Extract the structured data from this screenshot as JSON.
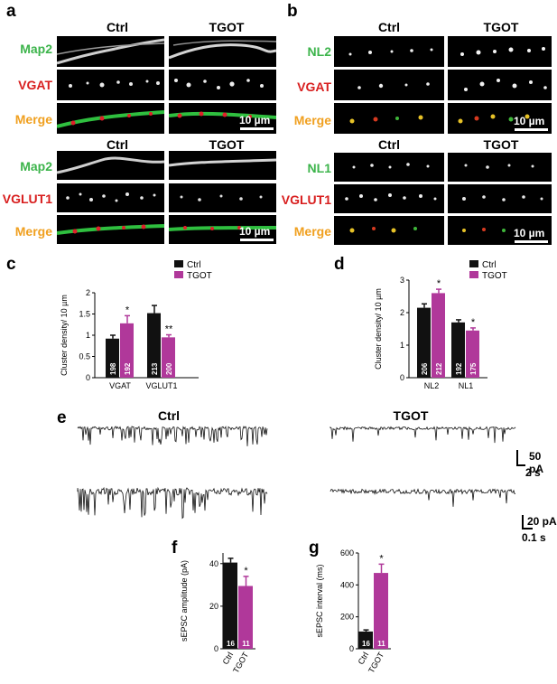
{
  "panels": {
    "a": {
      "letter": "a",
      "top": {
        "conditions": [
          "Ctrl",
          "TGOT"
        ],
        "rows": [
          "Map2",
          "VGAT",
          "Merge"
        ],
        "row_colors": [
          "#3cb44b",
          "#d81e1e",
          "#f0a020"
        ],
        "scale": "10 µm"
      },
      "bottom": {
        "conditions": [
          "Ctrl",
          "TGOT"
        ],
        "rows": [
          "Map2",
          "VGLUT1",
          "Merge"
        ],
        "row_colors": [
          "#3cb44b",
          "#d81e1e",
          "#f0a020"
        ],
        "scale": "10 µm"
      }
    },
    "b": {
      "letter": "b",
      "top": {
        "conditions": [
          "Ctrl",
          "TGOT"
        ],
        "rows": [
          "NL2",
          "VGAT",
          "Merge"
        ],
        "row_colors": [
          "#3cb44b",
          "#d81e1e",
          "#f0a020"
        ],
        "scale": "10 µm"
      },
      "bottom": {
        "conditions": [
          "Ctrl",
          "TGOT"
        ],
        "rows": [
          "NL1",
          "VGLUT1",
          "Merge"
        ],
        "row_colors": [
          "#3cb44b",
          "#d81e1e",
          "#f0a020"
        ],
        "scale": "10 µm"
      }
    },
    "c": {
      "letter": "c"
    },
    "d": {
      "letter": "d"
    },
    "e": {
      "letter": "e",
      "conditions": [
        "Ctrl",
        "TGOT"
      ],
      "scale1_y": "50 pA",
      "scale1_x": "2 s",
      "scale2_y": "20 pA",
      "scale2_x": "0.1 s"
    },
    "f": {
      "letter": "f"
    },
    "g": {
      "letter": "g"
    }
  },
  "colors": {
    "ctrl": "#111111",
    "tgot": "#b0389a"
  },
  "chart_data": [
    {
      "id": "c",
      "type": "bar",
      "ylabel": "Cluster density/ 10 µm",
      "categories": [
        "VGAT",
        "VGLUT1"
      ],
      "ylim": [
        0,
        2
      ],
      "yticks": [
        "0",
        "0.5",
        "1",
        "1.5",
        "2"
      ],
      "legend": [
        "Ctrl",
        "TGOT"
      ],
      "series": [
        {
          "name": "Ctrl",
          "values": [
            0.92,
            1.52
          ],
          "errors": [
            0.08,
            0.18
          ],
          "n": [
            "198",
            "213"
          ],
          "stars": [
            "",
            ""
          ]
        },
        {
          "name": "TGOT",
          "values": [
            1.28,
            0.95
          ],
          "errors": [
            0.18,
            0.06
          ],
          "n": [
            "192",
            "200"
          ],
          "stars": [
            "*",
            "**"
          ]
        }
      ]
    },
    {
      "id": "d",
      "type": "bar",
      "ylabel": "Cluster density/ 10 µm",
      "categories": [
        "NL2",
        "NL1"
      ],
      "ylim": [
        0,
        3
      ],
      "yticks": [
        "0",
        "1",
        "2",
        "3"
      ],
      "legend": [
        "Ctrl",
        "TGOT"
      ],
      "series": [
        {
          "name": "Ctrl",
          "values": [
            2.15,
            1.7
          ],
          "errors": [
            0.12,
            0.08
          ],
          "n": [
            "206",
            "192"
          ],
          "stars": [
            "",
            ""
          ]
        },
        {
          "name": "TGOT",
          "values": [
            2.6,
            1.45
          ],
          "errors": [
            0.12,
            0.08
          ],
          "n": [
            "212",
            "175"
          ],
          "stars": [
            "*",
            "*"
          ]
        }
      ]
    },
    {
      "id": "f",
      "type": "bar",
      "ylabel": "sEPSC amplitude (pA)",
      "categories": [
        "Ctrl",
        "TGOT"
      ],
      "ylim": [
        0,
        45
      ],
      "yticks": [
        "0",
        "20",
        "40"
      ],
      "values": [
        40.5,
        29.5
      ],
      "errors": [
        2.0,
        4.5
      ],
      "n": [
        "16",
        "11"
      ],
      "stars": [
        "",
        "*"
      ]
    },
    {
      "id": "g",
      "type": "bar",
      "ylabel": "sEPSC interval (ms)",
      "categories": [
        "Ctrl",
        "TGOT"
      ],
      "ylim": [
        0,
        600
      ],
      "yticks": [
        "0",
        "200",
        "400",
        "600"
      ],
      "values": [
        108,
        475
      ],
      "errors": [
        10,
        55
      ],
      "n": [
        "16",
        "11"
      ],
      "stars": [
        "",
        "*"
      ]
    }
  ]
}
